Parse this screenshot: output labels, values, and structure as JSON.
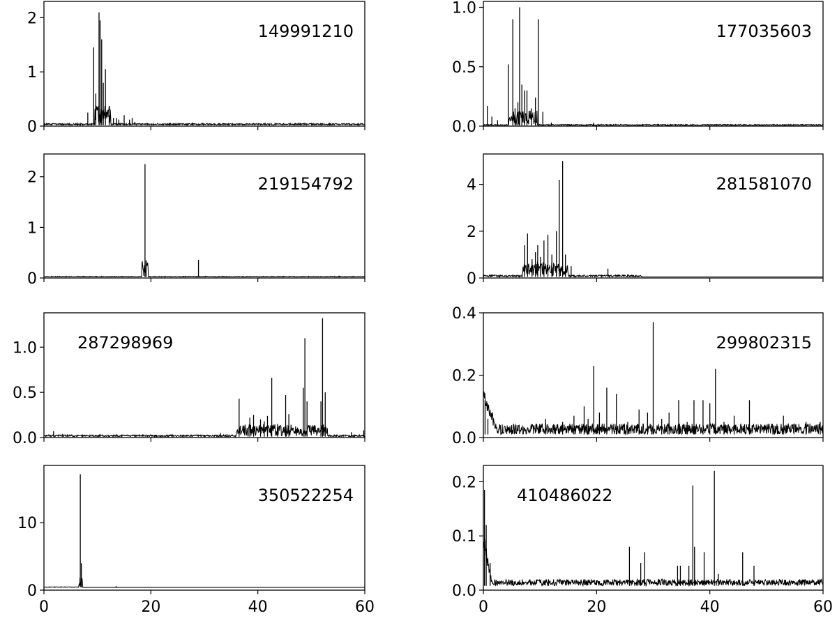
{
  "chart_data": [
    {
      "type": "line",
      "label": "149991210",
      "label_position": "top-right",
      "xlim": [
        0,
        60
      ],
      "ylim": [
        0,
        2.3
      ],
      "xticks": [
        "0",
        "20",
        "40",
        "60"
      ],
      "yticks": [
        {
          "v": 0,
          "t": "0"
        },
        {
          "v": 1,
          "t": "1"
        },
        {
          "v": 2,
          "t": "2"
        }
      ],
      "show_xticklabels": false,
      "baseline": 0.02,
      "noise": {
        "x0": 0,
        "x1": 60,
        "amp": 0.03
      },
      "clusters": [
        {
          "x0": 9.5,
          "x1": 12.5,
          "amp": 0.35
        }
      ],
      "peaks": [
        [
          0.5,
          0.06
        ],
        [
          1.5,
          0.05
        ],
        [
          8.2,
          0.25
        ],
        [
          9.3,
          1.45
        ],
        [
          9.7,
          0.6
        ],
        [
          10.3,
          2.1
        ],
        [
          10.5,
          1.95
        ],
        [
          10.8,
          1.6
        ],
        [
          11.1,
          0.8
        ],
        [
          11.5,
          1.05
        ],
        [
          12.2,
          0.2
        ],
        [
          13.0,
          0.15
        ],
        [
          13.6,
          0.15
        ],
        [
          14.0,
          0.12
        ],
        [
          15.0,
          0.2
        ],
        [
          16.0,
          0.12
        ],
        [
          16.5,
          0.15
        ],
        [
          17.0,
          0.08
        ],
        [
          23.0,
          0.04
        ]
      ]
    },
    {
      "type": "line",
      "label": "177035603",
      "label_position": "top-right",
      "xlim": [
        0,
        60
      ],
      "ylim": [
        0,
        1.05
      ],
      "xticks": [
        "0",
        "20",
        "40",
        "60"
      ],
      "yticks": [
        {
          "v": 0,
          "t": "0.0"
        },
        {
          "v": 0.5,
          "t": "0.5"
        },
        {
          "v": 1.0,
          "t": "1.0"
        }
      ],
      "show_xticklabels": false,
      "baseline": 0.005,
      "noise": {
        "x0": 0,
        "x1": 60,
        "amp": 0.01
      },
      "clusters": [
        {
          "x0": 4.5,
          "x1": 9.5,
          "amp": 0.12
        }
      ],
      "peaks": [
        [
          0.7,
          0.17
        ],
        [
          1.5,
          0.08
        ],
        [
          2.5,
          0.05
        ],
        [
          4.4,
          0.52
        ],
        [
          5.2,
          0.9
        ],
        [
          5.6,
          0.15
        ],
        [
          6.1,
          0.2
        ],
        [
          6.4,
          1.0
        ],
        [
          6.8,
          0.35
        ],
        [
          7.3,
          0.3
        ],
        [
          7.7,
          0.3
        ],
        [
          8.5,
          0.15
        ],
        [
          9.2,
          0.24
        ],
        [
          9.7,
          0.9
        ],
        [
          10.5,
          0.12
        ],
        [
          12.0,
          0.03
        ],
        [
          19.5,
          0.03
        ]
      ]
    },
    {
      "type": "line",
      "label": "219154792",
      "label_position": "top-right",
      "xlim": [
        0,
        60
      ],
      "ylim": [
        0,
        2.45
      ],
      "xticks": [
        "0",
        "20",
        "40",
        "60"
      ],
      "yticks": [
        {
          "v": 0,
          "t": "0"
        },
        {
          "v": 1,
          "t": "1"
        },
        {
          "v": 2,
          "t": "2"
        }
      ],
      "show_xticklabels": false,
      "baseline": 0.02,
      "noise": {
        "x0": 0,
        "x1": 60,
        "amp": 0.015
      },
      "clusters": [
        {
          "x0": 18.3,
          "x1": 19.5,
          "amp": 0.3
        }
      ],
      "peaks": [
        [
          18.9,
          2.25
        ],
        [
          19.1,
          0.35
        ],
        [
          28.9,
          0.36
        ],
        [
          45.0,
          0.03
        ]
      ]
    },
    {
      "type": "line",
      "label": "281581070",
      "label_position": "top-right",
      "xlim": [
        0,
        60
      ],
      "ylim": [
        0,
        5.3
      ],
      "xticks": [
        "0",
        "20",
        "40",
        "60"
      ],
      "yticks": [
        {
          "v": 0,
          "t": "0"
        },
        {
          "v": 2,
          "t": "2"
        },
        {
          "v": 4,
          "t": "4"
        }
      ],
      "show_xticklabels": false,
      "baseline": 0.05,
      "noise": {
        "x0": 0,
        "x1": 28,
        "amp": 0.08
      },
      "clusters": [
        {
          "x0": 7,
          "x1": 15,
          "amp": 0.6
        }
      ],
      "peaks": [
        [
          7.3,
          1.4
        ],
        [
          7.8,
          1.9
        ],
        [
          8.6,
          0.8
        ],
        [
          9.2,
          1.1
        ],
        [
          9.6,
          1.4
        ],
        [
          10.1,
          0.9
        ],
        [
          10.7,
          1.6
        ],
        [
          11.4,
          1.85
        ],
        [
          12.1,
          1.0
        ],
        [
          12.9,
          2.0
        ],
        [
          13.4,
          4.2
        ],
        [
          14.0,
          5.0
        ],
        [
          14.5,
          1.0
        ],
        [
          15.5,
          0.5
        ],
        [
          22.0,
          0.4
        ],
        [
          24.0,
          0.15
        ],
        [
          26.0,
          0.1
        ]
      ]
    },
    {
      "type": "line",
      "label": "287298969",
      "label_position": "top-left",
      "xlim": [
        0,
        60
      ],
      "ylim": [
        0,
        1.38
      ],
      "xticks": [
        "0",
        "20",
        "40",
        "60"
      ],
      "yticks": [
        {
          "v": 0,
          "t": "0.0"
        },
        {
          "v": 0.5,
          "t": "0.5"
        },
        {
          "v": 1.0,
          "t": "1.0"
        }
      ],
      "show_xticklabels": false,
      "baseline": 0.01,
      "noise": {
        "x0": 0,
        "x1": 60,
        "amp": 0.02
      },
      "clusters": [
        {
          "x0": 36,
          "x1": 53,
          "amp": 0.12
        }
      ],
      "peaks": [
        [
          1.8,
          0.07
        ],
        [
          3.5,
          0.04
        ],
        [
          33.0,
          0.05
        ],
        [
          36.5,
          0.43
        ],
        [
          38.5,
          0.22
        ],
        [
          39.2,
          0.25
        ],
        [
          40.5,
          0.2
        ],
        [
          41.2,
          0.18
        ],
        [
          41.8,
          0.24
        ],
        [
          42.6,
          0.66
        ],
        [
          43.7,
          0.15
        ],
        [
          45.2,
          0.47
        ],
        [
          45.8,
          0.26
        ],
        [
          48.5,
          0.55
        ],
        [
          48.8,
          1.1
        ],
        [
          49.2,
          0.4
        ],
        [
          51.8,
          0.4
        ],
        [
          52.1,
          1.32
        ],
        [
          52.6,
          0.5
        ],
        [
          57.5,
          0.06
        ],
        [
          59.8,
          0.08
        ]
      ]
    },
    {
      "type": "line",
      "label": "299802315",
      "label_position": "top-right",
      "xlim": [
        0,
        60
      ],
      "ylim": [
        0,
        0.4
      ],
      "xticks": [
        "0",
        "20",
        "40",
        "60"
      ],
      "yticks": [
        {
          "v": 0,
          "t": "0.0"
        },
        {
          "v": 0.2,
          "t": "0.2"
        },
        {
          "v": 0.4,
          "t": "0.4"
        }
      ],
      "show_xticklabels": false,
      "baseline": 0.01,
      "noise": {
        "x0": 0,
        "x1": 60,
        "amp": 0.035
      },
      "decay": {
        "x1": 2.5,
        "amp": 0.12
      },
      "clusters": [],
      "peaks": [
        [
          0.3,
          0.12
        ],
        [
          0.8,
          0.06
        ],
        [
          5.0,
          0.04
        ],
        [
          11.0,
          0.06
        ],
        [
          14.0,
          0.05
        ],
        [
          16.0,
          0.07
        ],
        [
          17.8,
          0.1
        ],
        [
          18.5,
          0.06
        ],
        [
          19.5,
          0.23
        ],
        [
          20.5,
          0.08
        ],
        [
          21.8,
          0.16
        ],
        [
          23.5,
          0.14
        ],
        [
          25.5,
          0.05
        ],
        [
          27.5,
          0.09
        ],
        [
          29.0,
          0.08
        ],
        [
          30.0,
          0.37
        ],
        [
          31.5,
          0.06
        ],
        [
          32.8,
          0.08
        ],
        [
          34.5,
          0.12
        ],
        [
          36.0,
          0.05
        ],
        [
          37.2,
          0.12
        ],
        [
          38.8,
          0.12
        ],
        [
          40.0,
          0.11
        ],
        [
          41.0,
          0.22
        ],
        [
          42.5,
          0.05
        ],
        [
          44.3,
          0.07
        ],
        [
          47.0,
          0.12
        ],
        [
          53.0,
          0.07
        ],
        [
          57.0,
          0.05
        ],
        [
          59.5,
          0.05
        ]
      ]
    },
    {
      "type": "line",
      "label": "350522254",
      "label_position": "top-right",
      "xlim": [
        0,
        60
      ],
      "ylim": [
        0,
        18.5
      ],
      "xticks": [
        "0",
        "20",
        "40",
        "60"
      ],
      "yticks": [
        {
          "v": 0,
          "t": "0"
        },
        {
          "v": 10,
          "t": "10"
        }
      ],
      "show_xticklabels": true,
      "baseline": 0.4,
      "noise": {
        "x0": 0,
        "x1": 7,
        "amp": 0.1
      },
      "clusters": [
        {
          "x0": 6.5,
          "x1": 7.2,
          "amp": 1.5
        }
      ],
      "peaks": [
        [
          6.8,
          17.2
        ],
        [
          7.0,
          4.0
        ],
        [
          13.5,
          0.6
        ]
      ]
    },
    {
      "type": "line",
      "label": "410486022",
      "label_position": "top-left",
      "xlim": [
        0,
        60
      ],
      "ylim": [
        0,
        0.23
      ],
      "xticks": [
        "0",
        "20",
        "40",
        "60"
      ],
      "yticks": [
        {
          "v": 0,
          "t": "0.0"
        },
        {
          "v": 0.1,
          "t": "0.1"
        },
        {
          "v": 0.2,
          "t": "0.2"
        }
      ],
      "show_xticklabels": true,
      "baseline": 0.008,
      "noise": {
        "x0": 0,
        "x1": 60,
        "amp": 0.012
      },
      "decay": {
        "x1": 1.5,
        "amp": 0.1
      },
      "clusters": [],
      "peaks": [
        [
          0.2,
          0.185
        ],
        [
          0.5,
          0.12
        ],
        [
          1.2,
          0.05
        ],
        [
          11.5,
          0.02
        ],
        [
          25.8,
          0.08
        ],
        [
          27.8,
          0.05
        ],
        [
          28.5,
          0.07
        ],
        [
          34.3,
          0.045
        ],
        [
          34.8,
          0.045
        ],
        [
          36.3,
          0.045
        ],
        [
          37.0,
          0.193
        ],
        [
          37.3,
          0.08
        ],
        [
          39.0,
          0.07
        ],
        [
          40.8,
          0.22
        ],
        [
          41.5,
          0.03
        ],
        [
          45.8,
          0.07
        ],
        [
          47.8,
          0.045
        ]
      ]
    }
  ]
}
